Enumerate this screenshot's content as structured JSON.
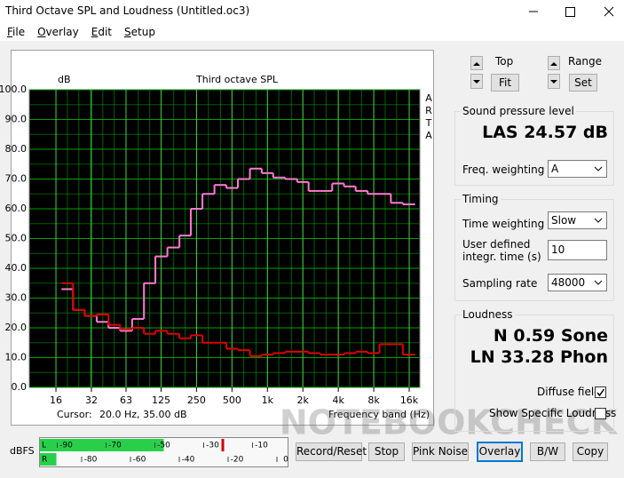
{
  "window": {
    "title": "Third Octave SPL and Loudness (Untitled.oc3)"
  },
  "menu": [
    "File",
    "Overlay",
    "Edit",
    "Setup"
  ],
  "chart_data": {
    "type": "step",
    "title": "Third octave SPL",
    "y_label": "dB",
    "side_label": "ARTA",
    "x_label": "Frequency band (Hz)",
    "cursor_label": "Cursor:",
    "cursor_value": "20.0 Hz, 35.00 dB",
    "x_scale": "log",
    "grid": true,
    "background": "#000000",
    "grid_color": "#00a000",
    "x": [
      20,
      25,
      31.5,
      40,
      50,
      63,
      80,
      100,
      125,
      160,
      200,
      250,
      315,
      400,
      500,
      630,
      800,
      1000,
      1250,
      1600,
      2000,
      2500,
      3150,
      4000,
      5000,
      6300,
      8000,
      10000,
      12500,
      16000
    ],
    "series": [
      {
        "color": "#ff7ad2",
        "values": [
          33,
          26,
          24,
          22,
          20,
          19,
          23,
          35,
          44,
          47,
          51,
          60,
          65,
          68,
          67,
          70,
          73.5,
          72,
          70.5,
          70,
          69,
          66,
          66,
          68.5,
          67.5,
          66,
          65,
          65,
          62,
          61.5
        ]
      },
      {
        "color": "#e00000",
        "values": [
          35,
          26,
          24,
          24.5,
          21,
          19.5,
          20,
          18,
          19,
          18,
          16.5,
          17.5,
          15,
          15,
          13,
          12.5,
          10.5,
          11,
          11.5,
          12,
          12,
          11.5,
          11,
          11,
          11.5,
          12,
          11.5,
          14.5,
          14.5,
          11
        ]
      }
    ],
    "xlim": [
      9.5,
      19700
    ],
    "xticks": [
      16,
      32,
      63,
      125,
      250,
      500,
      {
        "value": 1000,
        "label": "1k"
      },
      {
        "value": 2000,
        "label": "2k"
      },
      {
        "value": 4000,
        "label": "4k"
      },
      {
        "value": 8000,
        "label": "8k"
      },
      {
        "value": 16000,
        "label": "16k"
      }
    ],
    "ylim": [
      0,
      100
    ],
    "yticks": [
      {
        "value": 0,
        "label": "0.0"
      },
      {
        "value": 10,
        "label": "10.0"
      },
      {
        "value": 20,
        "label": "20.0"
      },
      {
        "value": 30,
        "label": "30.0"
      },
      {
        "value": 40,
        "label": "40.0"
      },
      {
        "value": 50,
        "label": "50.0"
      },
      {
        "value": 60,
        "label": "60.0"
      },
      {
        "value": 70,
        "label": "70.0"
      },
      {
        "value": 80,
        "label": "80.0"
      },
      {
        "value": 90,
        "label": "90.0"
      },
      {
        "value": 100,
        "label": "100.0"
      }
    ]
  },
  "view_controls": {
    "top_label": "Top",
    "fit_button": "Fit",
    "range_label": "Range",
    "set_button": "Set"
  },
  "spl": {
    "title": "Sound pressure level",
    "reading": "LAS 24.57 dB",
    "freq_weighting_label": "Freq. weighting",
    "freq_weighting": "A"
  },
  "timing": {
    "title": "Timing",
    "time_weighting_label": "Time weighting",
    "time_weighting": "Slow",
    "integration_label": "User defined integr. time (s)",
    "integration_time": 10,
    "sampling_rate_label": "Sampling rate",
    "sampling_rate": 48000
  },
  "loudness": {
    "title": "Loudness",
    "sone": "N 0.59 Sone",
    "phon": "LN 33.28 Phon",
    "diffuse_field_label": "Diffuse field",
    "diffuse_field": true,
    "specific_label": "Show Specific Loudness",
    "specific": false
  },
  "meter": {
    "unit": "dBFS",
    "channels": [
      "L",
      "R"
    ],
    "xlim": [
      -100,
      0
    ],
    "top_ticks": [
      -90,
      -70,
      -50,
      -30,
      -10
    ],
    "bottom_ticks": [
      -80,
      -60,
      -40,
      -20,
      0
    ],
    "levels": [
      -50,
      -94
    ],
    "peak": -26
  },
  "buttons": [
    "Record/Reset",
    "Stop",
    "Pink Noise",
    "Overlay",
    "B/W",
    "Copy"
  ],
  "watermark": "NOTEBOOKCHECK"
}
